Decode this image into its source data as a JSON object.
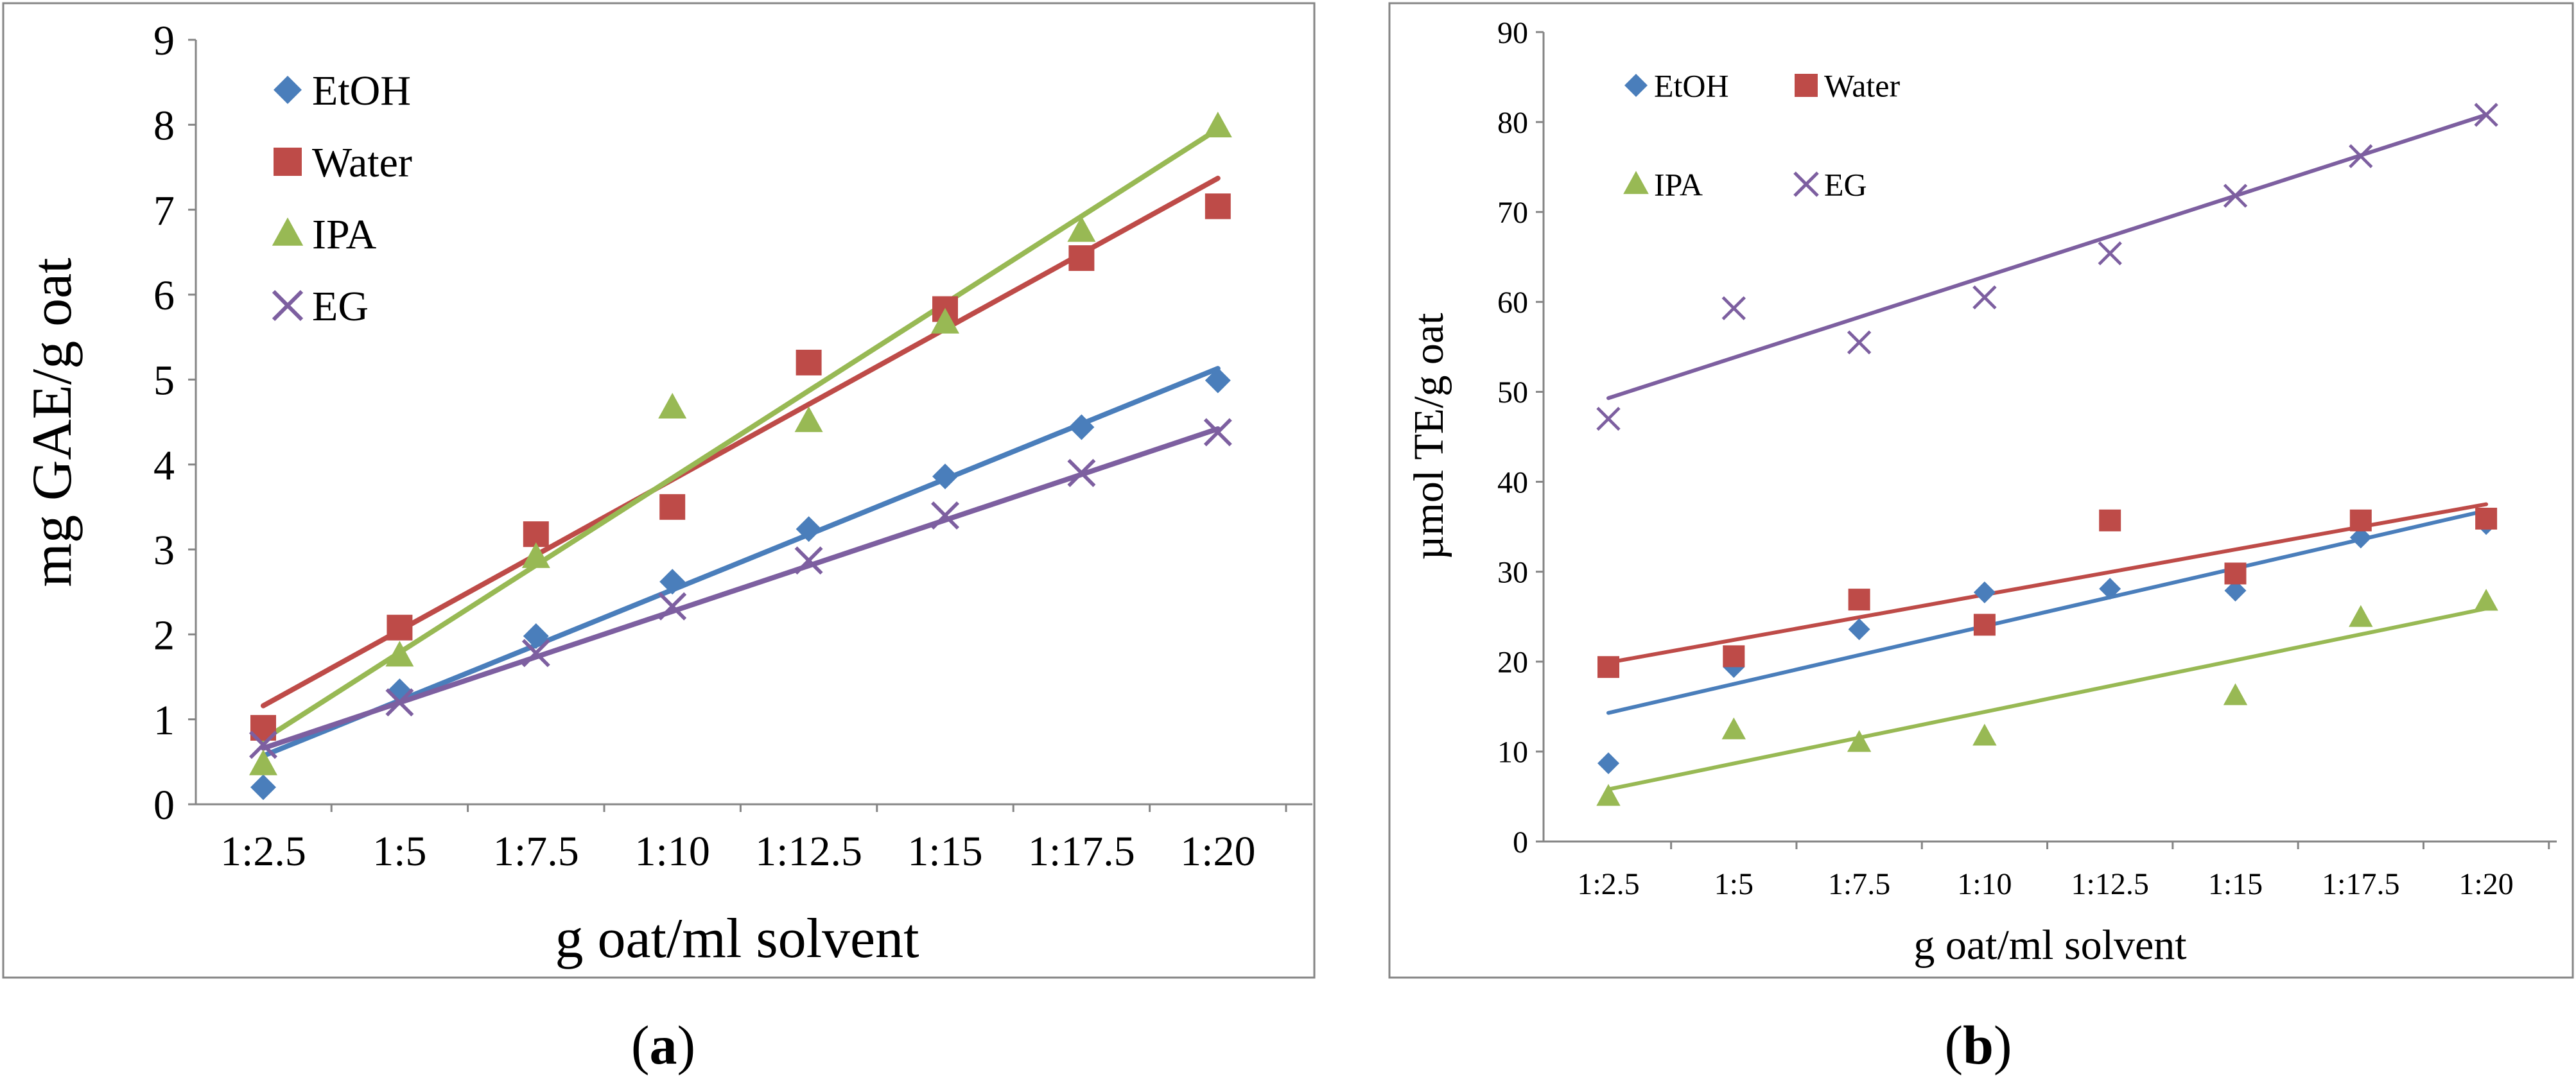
{
  "colors": {
    "EtOH": "#4a7ebb",
    "Water": "#be4b48",
    "IPA": "#98b954",
    "EG": "#7d5fa0"
  },
  "chart_data": [
    {
      "type": "scatter",
      "panel_label": "a",
      "xlabel": "g oat/ml solvent",
      "ylabel": "mg GAE/g oat",
      "categories": [
        "1:2.5",
        "1:5",
        "1:7.5",
        "1:10",
        "1:12.5",
        "1:15",
        "1:17.5",
        "1:20"
      ],
      "ylim": [
        0,
        9
      ],
      "yticks": [
        0,
        1,
        2,
        3,
        4,
        5,
        6,
        7,
        8,
        9
      ],
      "grid": false,
      "legend_position": "top-left",
      "legend_layout": "column",
      "trendlines": true,
      "series": [
        {
          "name": "EtOH",
          "marker": "diamond",
          "color": "#4a7ebb",
          "values": [
            0.2,
            1.33,
            1.98,
            2.62,
            3.24,
            3.86,
            4.44,
            4.99
          ],
          "trend": [
            0.57,
            5.13
          ]
        },
        {
          "name": "Water",
          "marker": "square",
          "color": "#be4b48",
          "values": [
            0.9,
            2.08,
            3.18,
            3.5,
            5.2,
            5.83,
            6.43,
            7.04
          ],
          "trend": [
            1.16,
            7.37
          ]
        },
        {
          "name": "IPA",
          "marker": "triangle",
          "color": "#98b954",
          "values": [
            0.47,
            1.75,
            2.91,
            4.67,
            4.51,
            5.67,
            6.75,
            7.98
          ],
          "trend": [
            0.76,
            7.95
          ]
        },
        {
          "name": "EG",
          "marker": "x",
          "color": "#7d5fa0",
          "values": [
            0.7,
            1.2,
            1.78,
            2.33,
            2.87,
            3.4,
            3.9,
            4.38
          ],
          "trend": [
            0.66,
            4.42
          ]
        }
      ]
    },
    {
      "type": "scatter",
      "panel_label": "b",
      "xlabel": "g oat/ml solvent",
      "ylabel": "µmol TE/g oat",
      "categories": [
        "1:2.5",
        "1:5",
        "1:7.5",
        "1:10",
        "1:12.5",
        "1:15",
        "1:17.5",
        "1:20"
      ],
      "ylim": [
        0,
        90
      ],
      "yticks": [
        0,
        10,
        20,
        30,
        40,
        50,
        60,
        70,
        80,
        90
      ],
      "grid": false,
      "legend_position": "top-left",
      "legend_layout": "two-by-two",
      "trendlines": true,
      "series": [
        {
          "name": "EtOH",
          "marker": "diamond",
          "color": "#4a7ebb",
          "values": [
            8.7,
            19.4,
            23.6,
            27.7,
            28.1,
            27.9,
            33.8,
            35.3
          ],
          "trend": [
            14.3,
            36.8
          ]
        },
        {
          "name": "Water",
          "marker": "square",
          "color": "#be4b48",
          "values": [
            19.4,
            20.6,
            26.9,
            24.1,
            35.7,
            29.8,
            35.7,
            35.9
          ],
          "trend": [
            19.9,
            37.5
          ]
        },
        {
          "name": "IPA",
          "marker": "triangle",
          "color": "#98b954",
          "values": [
            5.0,
            12.4,
            11.0,
            11.7,
            null,
            16.2,
            24.9,
            26.7
          ],
          "trend": [
            5.8,
            25.9
          ]
        },
        {
          "name": "EG",
          "marker": "x",
          "color": "#7d5fa0",
          "values": [
            47.0,
            59.3,
            55.5,
            60.5,
            65.4,
            71.8,
            76.2,
            80.8
          ],
          "trend": [
            49.3,
            80.8
          ]
        }
      ]
    }
  ]
}
